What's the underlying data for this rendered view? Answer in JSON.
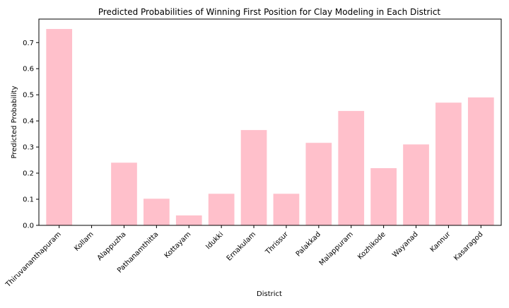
{
  "chart_data": {
    "type": "bar",
    "title": "Predicted Probabilities of Winning First Position for Clay Modeling in Each District",
    "xlabel": "District",
    "ylabel": "Predicted Probability",
    "categories": [
      "Thiruvananthapuram",
      "Kollam",
      "Alappuzha",
      "Pathanamthitta",
      "Kottayam",
      "Idukki",
      "Ernakulam",
      "Thrissur",
      "Palakkad",
      "Malappuram",
      "Kozhikode",
      "Wayanad",
      "Kannur",
      "Kasaragod"
    ],
    "values": [
      0.752,
      0.0,
      0.24,
      0.102,
      0.038,
      0.121,
      0.365,
      0.121,
      0.316,
      0.438,
      0.219,
      0.31,
      0.47,
      0.49
    ],
    "ylim": [
      0,
      0.79
    ],
    "yticks": [
      0.0,
      0.1,
      0.2,
      0.3,
      0.4,
      0.5,
      0.6,
      0.7
    ],
    "ytick_labels": [
      "0.0",
      "0.1",
      "0.2",
      "0.3",
      "0.4",
      "0.5",
      "0.6",
      "0.7"
    ],
    "grid": false,
    "legend": "none",
    "bar_color": "#ffc0cb"
  }
}
